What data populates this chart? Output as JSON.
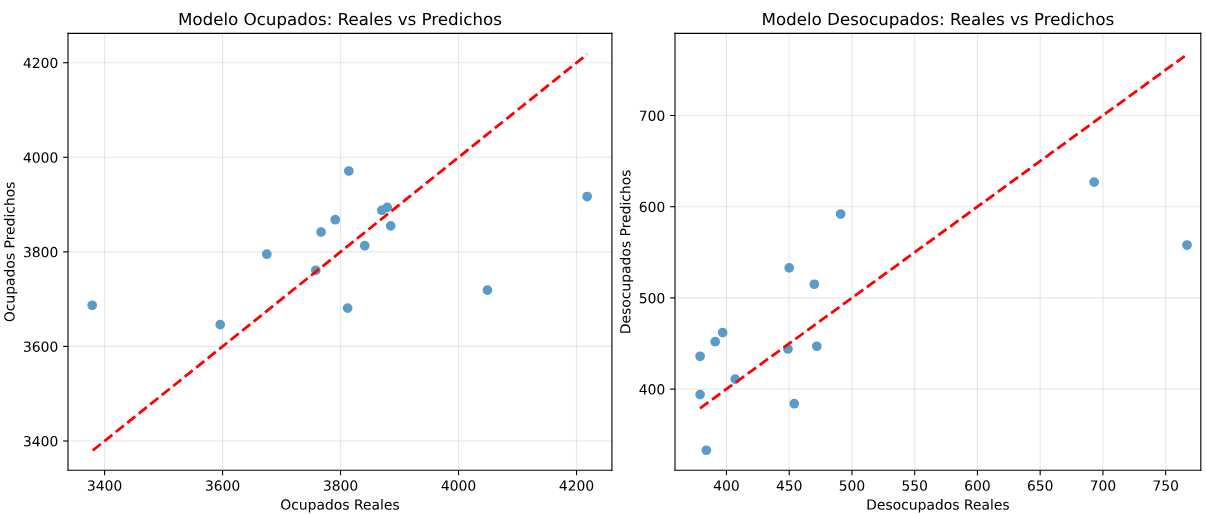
{
  "chart_data": [
    {
      "type": "scatter",
      "title": "Modelo Ocupados: Reales vs Predichos",
      "xlabel": "Ocupados Reales",
      "ylabel": "Ocupados Predichos",
      "xlim": [
        3338,
        4260
      ],
      "ylim": [
        3338,
        4262
      ],
      "xticks": [
        3400,
        3600,
        3800,
        4000,
        4200
      ],
      "yticks": [
        3400,
        3600,
        3800,
        4000,
        4200
      ],
      "grid": true,
      "series": [
        {
          "color": "#5b9bc9",
          "marker": "circle",
          "x": [
            3379,
            3596,
            3675,
            3758,
            3767,
            3791,
            3814,
            3812,
            3841,
            3870,
            3879,
            3885,
            4049,
            4218
          ],
          "values": [
            3687,
            3646,
            3795,
            3761,
            3842,
            3868,
            3971,
            3681,
            3813,
            3888,
            3894,
            3855,
            3719,
            3917
          ]
        },
        {
          "type": "line",
          "color": "#ff0000",
          "line_style": "dashed",
          "x": [
            3380,
            4218
          ],
          "values": [
            3380,
            4218
          ]
        }
      ]
    },
    {
      "type": "scatter",
      "title": "Modelo Desocupados: Reales vs Predichos",
      "xlabel": "Desocupados Reales",
      "ylabel": "Desocupados Predichos",
      "xlim": [
        359,
        778
      ],
      "ylim": [
        311,
        790
      ],
      "xticks": [
        400,
        450,
        500,
        550,
        600,
        650,
        700,
        750
      ],
      "yticks": [
        400,
        500,
        600,
        700
      ],
      "grid": true,
      "series": [
        {
          "color": "#5b9bc9",
          "marker": "circle",
          "x": [
            379,
            379,
            384,
            391,
            397,
            407,
            449,
            450,
            454,
            470,
            472,
            491,
            693,
            767
          ],
          "values": [
            436,
            394,
            333,
            452,
            462,
            411,
            444,
            533,
            384,
            515,
            447,
            592,
            627,
            558
          ]
        },
        {
          "type": "line",
          "color": "#ff0000",
          "line_style": "dashed",
          "x": [
            379,
            767
          ],
          "values": [
            379,
            767
          ]
        }
      ]
    }
  ]
}
